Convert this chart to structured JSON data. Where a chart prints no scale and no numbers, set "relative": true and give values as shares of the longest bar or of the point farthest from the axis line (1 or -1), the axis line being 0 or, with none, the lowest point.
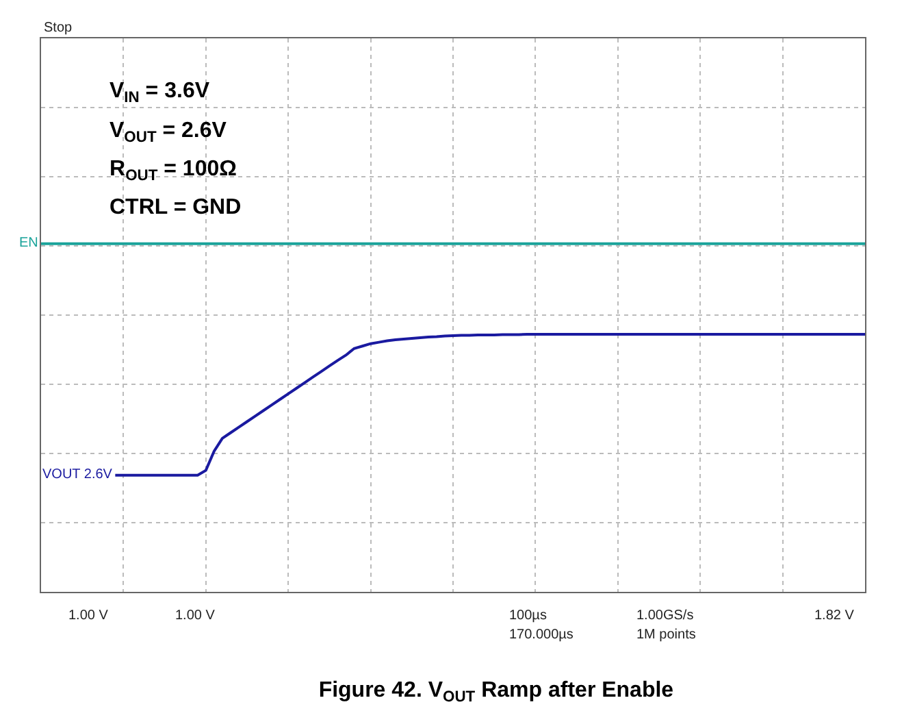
{
  "chart_data": {
    "type": "line",
    "title": "Figure 42. V$_{OUT}$ Ramp after Enable",
    "relative": true,
    "grid": true,
    "legend": false,
    "marker": "none",
    "line_style": "solid",
    "categories": [
      null,
      null,
      null,
      null,
      null,
      null,
      null,
      null,
      null,
      null,
      null,
      null,
      null,
      null,
      null,
      null,
      null,
      null,
      null,
      null,
      null,
      null,
      null,
      null,
      null,
      null,
      null,
      null,
      null,
      null,
      null,
      null,
      null,
      null,
      null,
      null,
      null,
      null,
      null,
      null,
      null,
      null,
      null,
      null,
      null,
      null,
      null,
      null,
      null,
      null,
      null,
      null,
      null,
      null,
      null,
      null,
      null,
      null,
      null,
      null,
      null,
      null,
      null,
      null,
      null,
      null,
      null,
      null,
      null,
      null,
      null,
      null,
      null,
      null,
      null,
      null,
      null,
      null,
      null,
      null,
      null,
      null,
      null,
      null,
      null,
      null,
      null,
      null,
      null,
      null,
      null,
      null,
      null,
      null,
      null,
      null,
      null,
      null,
      null,
      null,
      null
    ],
    "series": [
      {
        "name": "EN",
        "color": "#1aa39a",
        "values": [
          1,
          1,
          1,
          1,
          1,
          1,
          1,
          1,
          1,
          1,
          1,
          1,
          1,
          1,
          1,
          1,
          1,
          1,
          1,
          1,
          1,
          1,
          1,
          1,
          1,
          1,
          1,
          1,
          1,
          1,
          1,
          1,
          1,
          1,
          1,
          1,
          1,
          1,
          1,
          1,
          1,
          1,
          1,
          1,
          1,
          1,
          1,
          1,
          1,
          1,
          1,
          1,
          1,
          1,
          1,
          1,
          1,
          1,
          1,
          1,
          1,
          1,
          1,
          1,
          1,
          1,
          1,
          1,
          1,
          1,
          1,
          1,
          1,
          1,
          1,
          1,
          1,
          1,
          1,
          1,
          1,
          1,
          1,
          1,
          1,
          1,
          1,
          1,
          1,
          1,
          1,
          1,
          1,
          1,
          1,
          1,
          1,
          1,
          1,
          1,
          1
        ]
      },
      {
        "name": "VOUT 2.6V",
        "color": "#1a1aa0",
        "values": [
          null,
          null,
          null,
          null,
          null,
          null,
          null,
          null,
          null,
          0.335,
          0.335,
          0.335,
          0.335,
          0.335,
          0.335,
          0.335,
          0.335,
          0.335,
          0.335,
          0.335,
          0.349,
          0.404,
          0.441,
          0.457,
          0.473,
          0.489,
          0.505,
          0.521,
          0.537,
          0.553,
          0.569,
          0.585,
          0.601,
          0.617,
          0.633,
          0.649,
          0.665,
          0.68,
          0.699,
          0.706,
          0.713,
          0.717,
          0.721,
          0.724,
          0.726,
          0.728,
          0.73,
          0.732,
          0.733,
          0.735,
          0.736,
          0.737,
          0.737,
          0.738,
          0.738,
          0.738,
          0.739,
          0.739,
          0.739,
          0.74,
          0.74,
          0.74,
          0.74,
          0.74,
          0.74,
          0.74,
          0.74,
          0.74,
          0.74,
          0.74,
          0.74,
          0.74,
          0.74,
          0.74,
          0.74,
          0.74,
          0.74,
          0.74,
          0.74,
          0.74,
          0.74,
          0.74,
          0.74,
          0.74,
          0.74,
          0.74,
          0.74,
          0.74,
          0.74,
          0.74,
          0.74,
          0.74,
          0.74,
          0.74,
          0.74,
          0.74,
          0.74,
          0.74,
          0.74,
          0.74,
          0.74
        ]
      }
    ],
    "annotations": [
      "V$_{IN}$ = 3.6V",
      "V$_{OUT}$ = 2.6V",
      "R$_{OUT}$ = 100Ω",
      "CTRL = GND",
      "Stop",
      "1.00 V",
      "1.00 V",
      "100µs",
      "170.000µs",
      "1.00GS/s",
      "1M points",
      "1.82 V"
    ]
  }
}
